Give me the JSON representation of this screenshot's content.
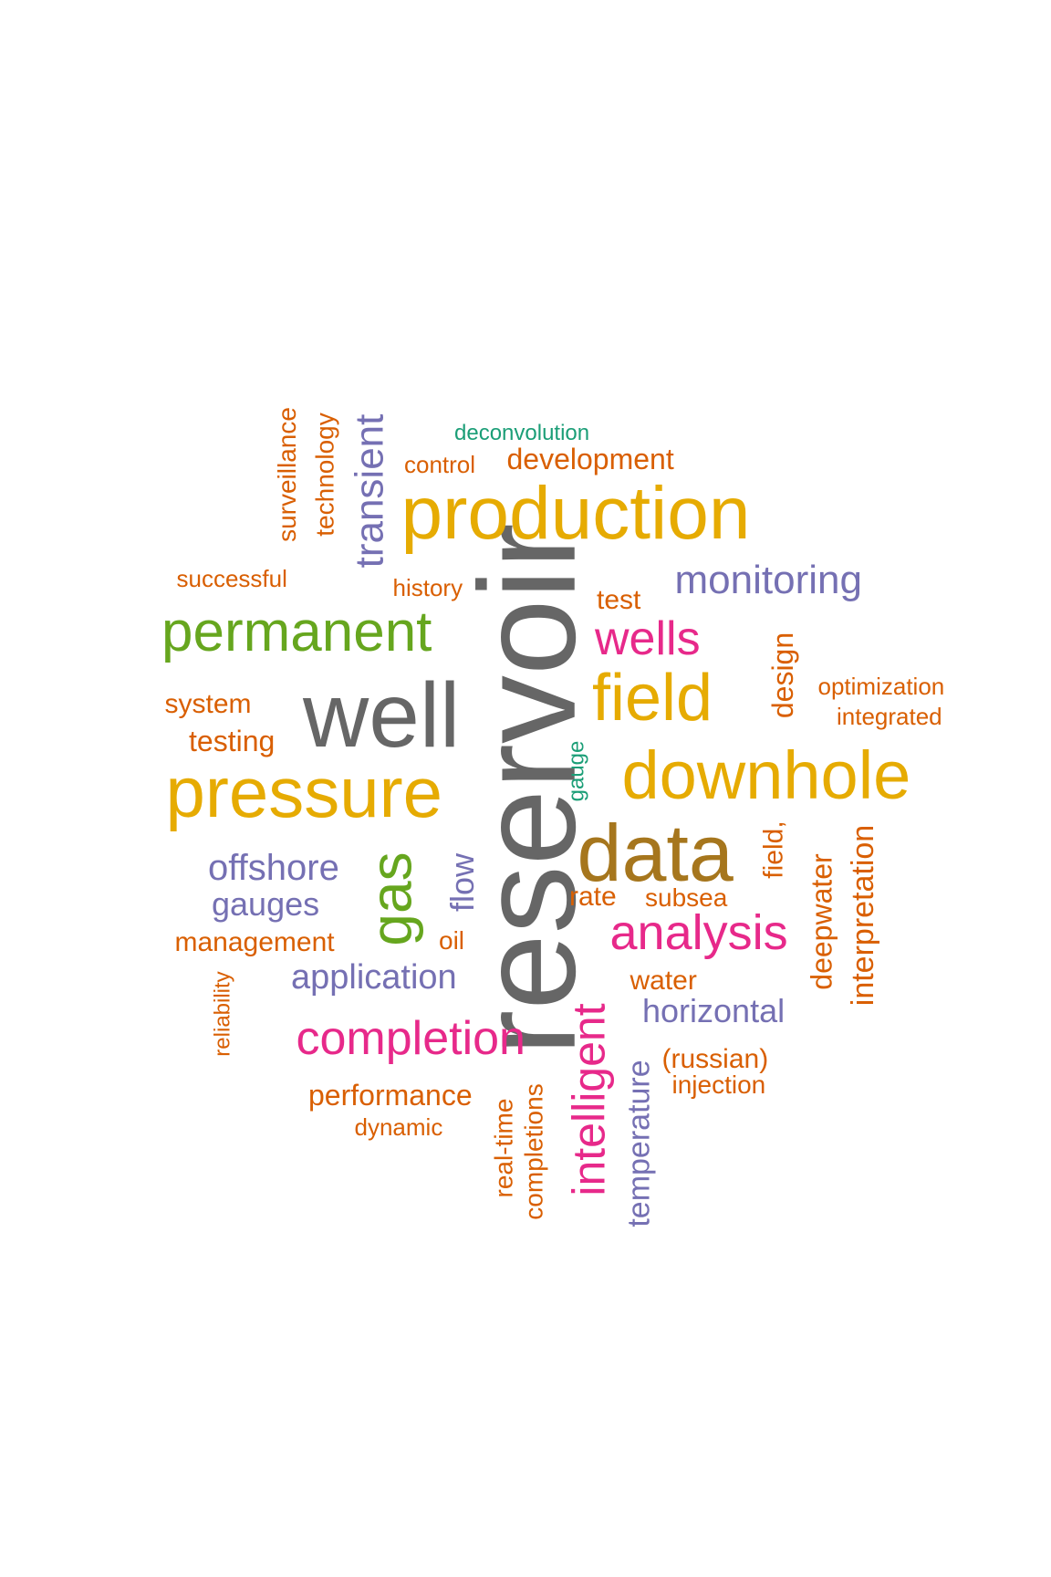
{
  "colors": {
    "orange": "#d95f02",
    "teal": "#1b9e77",
    "purple": "#7570b3",
    "magenta": "#e7298a",
    "green": "#66a61e",
    "gold": "#e6ab02",
    "brown": "#a6761d",
    "gray": "#666666"
  },
  "words": [
    {
      "text": "reservoir",
      "color": "#666666"
    },
    {
      "text": "well",
      "color": "#666666"
    },
    {
      "text": "production",
      "color": "#e6ab02"
    },
    {
      "text": "pressure",
      "color": "#e6ab02"
    },
    {
      "text": "downhole",
      "color": "#e6ab02"
    },
    {
      "text": "data",
      "color": "#a6761d"
    },
    {
      "text": "field",
      "color": "#e6ab02"
    },
    {
      "text": "permanent",
      "color": "#66a61e"
    },
    {
      "text": "gas",
      "color": "#66a61e"
    },
    {
      "text": "wells",
      "color": "#e7298a"
    },
    {
      "text": "analysis",
      "color": "#e7298a"
    },
    {
      "text": "completion",
      "color": "#e7298a"
    },
    {
      "text": "intelligent",
      "color": "#e7298a"
    },
    {
      "text": "monitoring",
      "color": "#7570b3"
    },
    {
      "text": "transient",
      "color": "#7570b3"
    },
    {
      "text": "offshore",
      "color": "#7570b3"
    },
    {
      "text": "gauges",
      "color": "#7570b3"
    },
    {
      "text": "application",
      "color": "#7570b3"
    },
    {
      "text": "horizontal",
      "color": "#7570b3"
    },
    {
      "text": "flow",
      "color": "#7570b3"
    },
    {
      "text": "temperature",
      "color": "#7570b3"
    },
    {
      "text": "surveillance",
      "color": "#d95f02"
    },
    {
      "text": "technology",
      "color": "#d95f02"
    },
    {
      "text": "deconvolution",
      "color": "#1b9e77"
    },
    {
      "text": "control",
      "color": "#d95f02"
    },
    {
      "text": "development",
      "color": "#d95f02"
    },
    {
      "text": "successful",
      "color": "#d95f02"
    },
    {
      "text": "history",
      "color": "#d95f02"
    },
    {
      "text": "test",
      "color": "#d95f02"
    },
    {
      "text": "design",
      "color": "#d95f02"
    },
    {
      "text": "optimization",
      "color": "#d95f02"
    },
    {
      "text": "integrated",
      "color": "#d95f02"
    },
    {
      "text": "system",
      "color": "#d95f02"
    },
    {
      "text": "testing",
      "color": "#d95f02"
    },
    {
      "text": "gauge",
      "color": "#1b9e77"
    },
    {
      "text": "field,",
      "color": "#d95f02"
    },
    {
      "text": "deepwater",
      "color": "#d95f02"
    },
    {
      "text": "interpretation",
      "color": "#d95f02"
    },
    {
      "text": "rate",
      "color": "#d95f02"
    },
    {
      "text": "subsea",
      "color": "#d95f02"
    },
    {
      "text": "management",
      "color": "#d95f02"
    },
    {
      "text": "oil",
      "color": "#d95f02"
    },
    {
      "text": "water",
      "color": "#d95f02"
    },
    {
      "text": "reliability",
      "color": "#d95f02"
    },
    {
      "text": "(russian)",
      "color": "#d95f02"
    },
    {
      "text": "injection",
      "color": "#d95f02"
    },
    {
      "text": "performance",
      "color": "#d95f02"
    },
    {
      "text": "dynamic",
      "color": "#d95f02"
    },
    {
      "text": "real-time",
      "color": "#d95f02"
    },
    {
      "text": "completions",
      "color": "#d95f02"
    }
  ]
}
